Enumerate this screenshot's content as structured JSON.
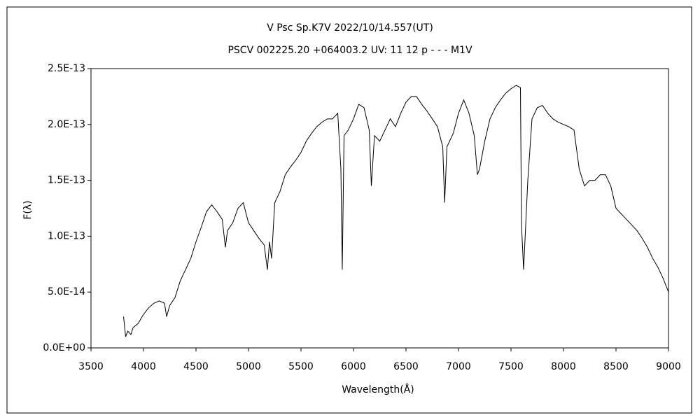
{
  "chart_data": {
    "type": "line",
    "title": "V Psc    Sp.K7V    2022/10/14.557(UT)",
    "subtitle": "PSCV 002225.20 +064003.2 UV: 11 12 p - - - M1V",
    "x_label": "Wavelength(Å)",
    "y_label": "F(λ)",
    "color": "#000000",
    "xlim": [
      3500,
      9000
    ],
    "xticks": [
      3500,
      4000,
      4500,
      5000,
      5500,
      6000,
      6500,
      7000,
      7500,
      8000,
      8500,
      9000
    ],
    "ylim": [
      0,
      2.5e-13
    ],
    "yticks": [
      {
        "value": 0,
        "label": "0.0E+00"
      },
      {
        "value": 5e-14,
        "label": "5.0E-14"
      },
      {
        "value": 1e-13,
        "label": "1.0E-13"
      },
      {
        "value": 1.5e-13,
        "label": "1.5E-13"
      },
      {
        "value": 2e-13,
        "label": "2.0E-13"
      },
      {
        "value": 2.5e-13,
        "label": "2.5E-13"
      }
    ],
    "grid": false,
    "x": [
      3810,
      3830,
      3850,
      3880,
      3900,
      3950,
      4000,
      4050,
      4100,
      4150,
      4200,
      4220,
      4250,
      4300,
      4350,
      4400,
      4450,
      4500,
      4550,
      4600,
      4650,
      4700,
      4750,
      4780,
      4800,
      4850,
      4900,
      4950,
      5000,
      5050,
      5100,
      5150,
      5180,
      5200,
      5220,
      5250,
      5300,
      5350,
      5400,
      5450,
      5500,
      5550,
      5600,
      5650,
      5700,
      5750,
      5800,
      5850,
      5880,
      5893,
      5910,
      5950,
      6000,
      6050,
      6100,
      6150,
      6170,
      6200,
      6250,
      6300,
      6350,
      6400,
      6450,
      6500,
      6550,
      6600,
      6650,
      6700,
      6750,
      6800,
      6850,
      6868,
      6890,
      6950,
      7000,
      7050,
      7100,
      7150,
      7180,
      7200,
      7250,
      7300,
      7350,
      7400,
      7450,
      7500,
      7550,
      7590,
      7600,
      7620,
      7640,
      7660,
      7700,
      7750,
      7800,
      7850,
      7900,
      7950,
      8000,
      8050,
      8100,
      8150,
      8200,
      8250,
      8300,
      8350,
      8400,
      8450,
      8500,
      8550,
      8600,
      8650,
      8700,
      8750,
      8800,
      8850,
      8900,
      8950,
      9000
    ],
    "values": [
      2.8e-14,
      1e-14,
      1.5e-14,
      1.2e-14,
      1.8e-14,
      2.2e-14,
      3e-14,
      3.6e-14,
      4e-14,
      4.2e-14,
      4e-14,
      2.8e-14,
      3.8e-14,
      4.5e-14,
      6e-14,
      7e-14,
      8e-14,
      9.5e-14,
      1.08e-13,
      1.22e-13,
      1.28e-13,
      1.22e-13,
      1.15e-13,
      9e-14,
      1.05e-13,
      1.12e-13,
      1.25e-13,
      1.3e-13,
      1.12e-13,
      1.05e-13,
      9.8e-14,
      9.2e-14,
      7e-14,
      9.5e-14,
      8e-14,
      1.3e-13,
      1.4e-13,
      1.55e-13,
      1.62e-13,
      1.68e-13,
      1.75e-13,
      1.85e-13,
      1.92e-13,
      1.98e-13,
      2.02e-13,
      2.05e-13,
      2.05e-13,
      2.1e-13,
      1.6e-13,
      7e-14,
      1.9e-13,
      1.95e-13,
      2.05e-13,
      2.18e-13,
      2.15e-13,
      1.95e-13,
      1.45e-13,
      1.9e-13,
      1.85e-13,
      1.95e-13,
      2.05e-13,
      1.98e-13,
      2.1e-13,
      2.2e-13,
      2.25e-13,
      2.25e-13,
      2.18e-13,
      2.12e-13,
      2.05e-13,
      1.98e-13,
      1.8e-13,
      1.3e-13,
      1.8e-13,
      1.92e-13,
      2.1e-13,
      2.22e-13,
      2.1e-13,
      1.9e-13,
      1.55e-13,
      1.6e-13,
      1.85e-13,
      2.05e-13,
      2.15e-13,
      2.22e-13,
      2.28e-13,
      2.32e-13,
      2.35e-13,
      2.33e-13,
      1.1e-13,
      7e-14,
      1.1e-13,
      1.5e-13,
      2.05e-13,
      2.15e-13,
      2.17e-13,
      2.1e-13,
      2.05e-13,
      2.02e-13,
      2e-13,
      1.98e-13,
      1.95e-13,
      1.6e-13,
      1.45e-13,
      1.5e-13,
      1.5e-13,
      1.55e-13,
      1.55e-13,
      1.45e-13,
      1.25e-13,
      1.2e-13,
      1.15e-13,
      1.1e-13,
      1.05e-13,
      9.8e-14,
      9e-14,
      8e-14,
      7.2e-14,
      6.2e-14,
      5e-14
    ]
  }
}
